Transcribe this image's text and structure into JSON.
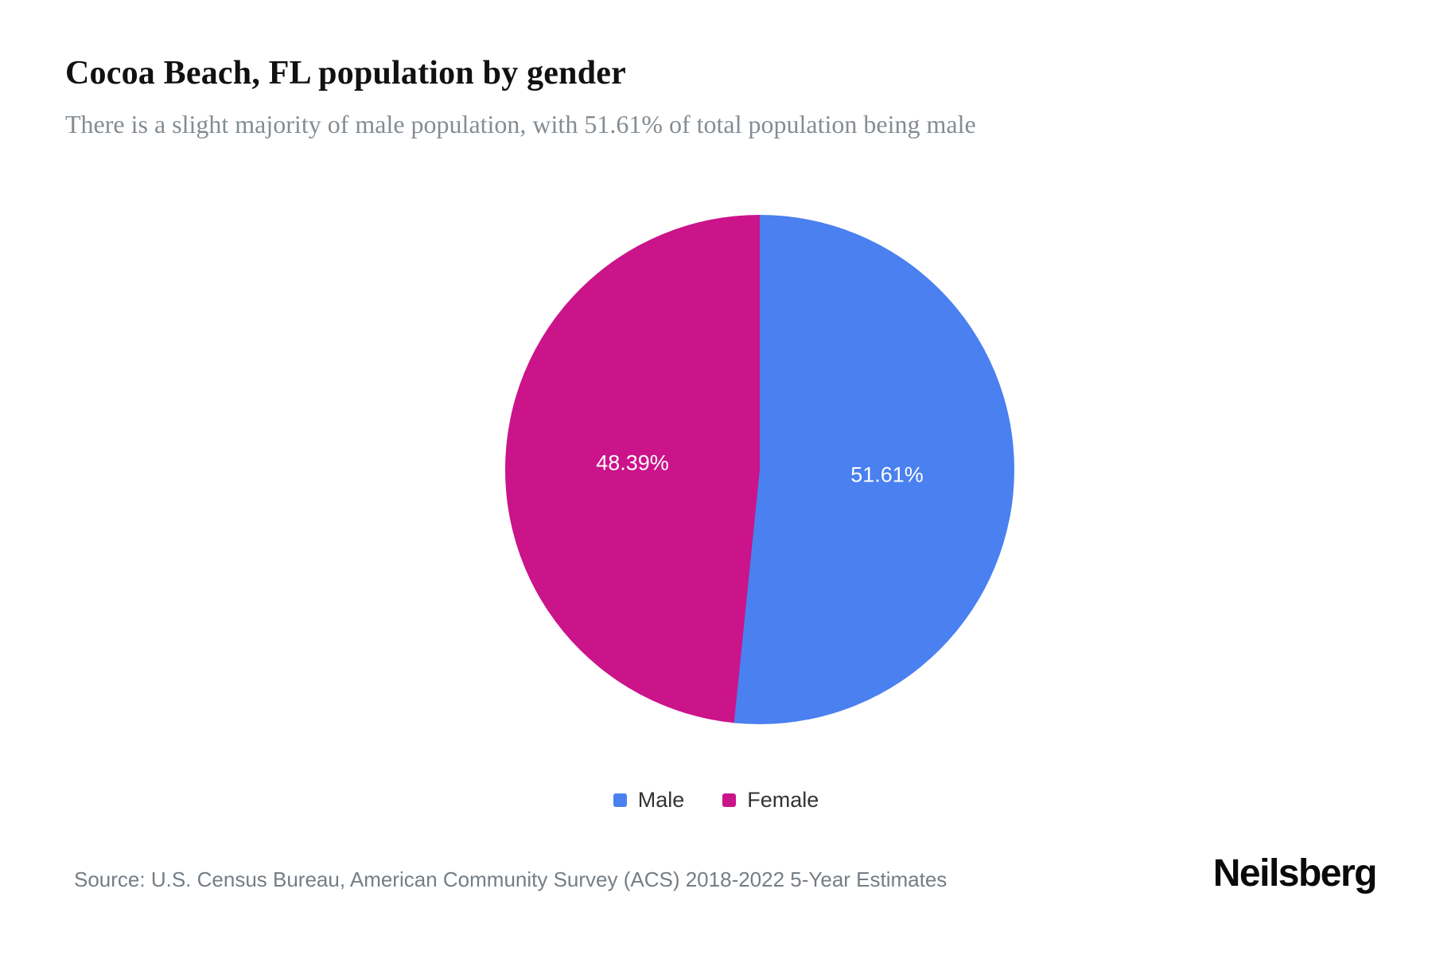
{
  "header": {
    "title": "Cocoa Beach, FL population by gender",
    "subtitle": "There is a slight majority of male population, with 51.61% of total population being male"
  },
  "chart_data": {
    "type": "pie",
    "title": "Cocoa Beach, FL population by gender",
    "start_angle_deg": 0,
    "direction": "clockwise",
    "slices": [
      {
        "label": "Male",
        "value": 51.61,
        "display_label": "51.61%",
        "color": "#4a80ef"
      },
      {
        "label": "Female",
        "value": 48.39,
        "display_label": "48.39%",
        "color": "#cb138a"
      }
    ],
    "legend_position": "bottom",
    "label_color": "#ffffff"
  },
  "footer": {
    "source": "Source: U.S. Census Bureau, American Community Survey (ACS) 2018-2022 5-Year Estimates",
    "brand": "Neilsberg"
  }
}
